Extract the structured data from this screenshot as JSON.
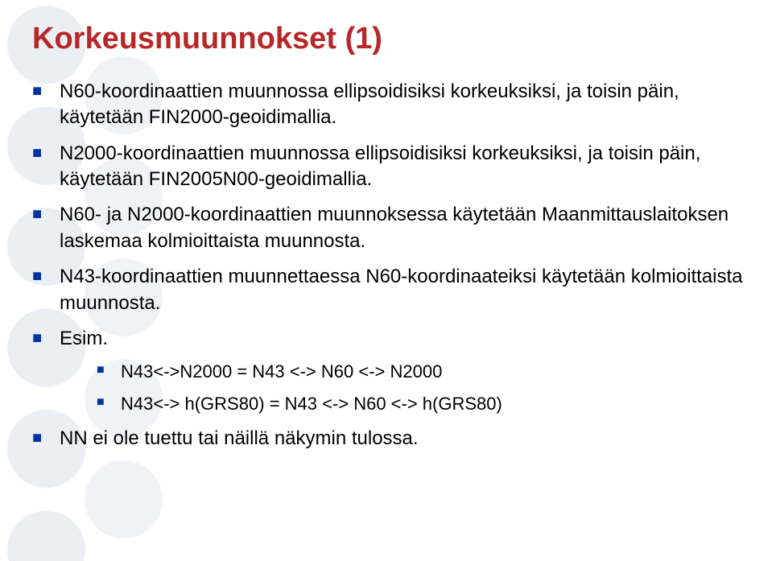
{
  "slide": {
    "title": "Korkeusmuunnokset (1)",
    "title_color": "#b82727",
    "title_fontsize": 38,
    "bullet_marker_color": "#0033a0",
    "body_text_color": "#000000",
    "body_fontsize": 24,
    "sub_fontsize": 22,
    "background_color": "#ffffff",
    "bullets": [
      "N60-koordinaattien muunnossa ellipsoidisiksi korkeuksiksi, ja toisin päin, käytetään FIN2000-geoidimallia.",
      "N2000-koordinaattien muunnossa ellipsoidisiksi korkeuksiksi, ja toisin päin, käytetään FIN2005N00-geoidimallia.",
      "N60- ja N2000-koordinaattien muunnoksessa käytetään Maanmittauslaitoksen laskemaa kolmioittaista muunnosta.",
      "N43-koordinaattien muunnettaessa N60-koordinaateiksi käytetään kolmioittaista muunnosta.",
      "Esim.",
      "NN ei ole tuettu tai näillä näkymin tulossa."
    ],
    "sub_bullets": [
      "N43<->N2000 = N43 <-> N60 <-> N2000",
      "N43<-> h(GRS80) = N43 <-> N60 <-> h(GRS80)"
    ]
  }
}
